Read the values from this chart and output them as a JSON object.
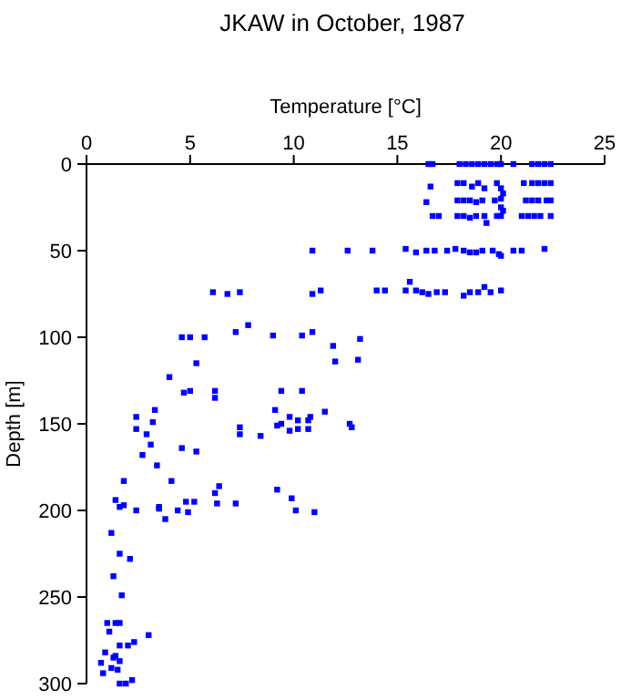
{
  "chart_data": {
    "type": "scatter",
    "title": "JKAW in October, 1987",
    "xlabel": "Temperature [°C]",
    "ylabel": "Depth [m]",
    "xlim": [
      0,
      25
    ],
    "xticks": [
      0,
      5,
      10,
      15,
      20,
      25
    ],
    "ylim": [
      300,
      0
    ],
    "yticks": [
      0,
      50,
      100,
      150,
      200,
      250,
      300
    ],
    "marker": "square",
    "series": [
      {
        "color": "#0000ff",
        "x": [
          16.5,
          16.7,
          18.0,
          18.3,
          18.6,
          18.9,
          19.2,
          19.5,
          19.8,
          20.0,
          20.6,
          21.5,
          21.8,
          22.1,
          22.4,
          16.6,
          17.9,
          18.2,
          18.6,
          18.9,
          19.2,
          19.8,
          20.0,
          20.1,
          21.1,
          21.5,
          21.8,
          22.1,
          22.4,
          16.4,
          17.9,
          18.2,
          18.5,
          18.8,
          19.1,
          19.7,
          20.0,
          20.0,
          20.1,
          21.2,
          21.5,
          21.8,
          22.2,
          22.4,
          16.7,
          17.0,
          17.9,
          18.2,
          18.5,
          18.8,
          19.2,
          19.3,
          19.8,
          20.0,
          21.0,
          21.3,
          21.6,
          21.9,
          22.4,
          10.9,
          12.6,
          13.8,
          15.4,
          15.9,
          16.4,
          16.8,
          17.4,
          17.8,
          18.2,
          18.5,
          18.8,
          19.1,
          19.6,
          19.9,
          20.0,
          20.6,
          21.0,
          22.1,
          6.1,
          6.8,
          7.4,
          10.9,
          11.3,
          14.0,
          14.4,
          15.4,
          15.6,
          15.9,
          16.2,
          16.5,
          16.9,
          17.3,
          18.2,
          18.5,
          18.9,
          19.2,
          19.5,
          20.0,
          7.8,
          7.2,
          4.6,
          5.0,
          5.7,
          9.0,
          10.4,
          10.9,
          11.9,
          13.2,
          12.0,
          13.1,
          5.3,
          4.0,
          4.7,
          5.0,
          6.2,
          6.2,
          9.4,
          10.4,
          2.4,
          2.4,
          3.2,
          3.3,
          2.9,
          3.1,
          2.7,
          3.4,
          4.6,
          5.3,
          7.4,
          7.4,
          8.4,
          9.1,
          9.2,
          9.4,
          9.8,
          9.8,
          10.2,
          10.2,
          10.7,
          10.7,
          10.8,
          11.5,
          12.7,
          12.8,
          1.8,
          1.4,
          1.8,
          1.6,
          2.4,
          3.5,
          3.5,
          3.8,
          4.1,
          4.4,
          4.8,
          4.9,
          5.2,
          6.4,
          6.2,
          6.3,
          7.2,
          9.2,
          9.9,
          10.1,
          11.0,
          1.2,
          1.6,
          2.1,
          1.3,
          1.7,
          1.0,
          1.4,
          1.6,
          1.1,
          3.0,
          2.3,
          2.0,
          1.6,
          0.9,
          1.4,
          1.3,
          1.6,
          0.7,
          1.2,
          1.5,
          0.8,
          1.6,
          1.9,
          2.2
        ],
        "values": [
          0,
          0,
          0,
          0,
          0,
          0,
          0,
          0,
          0,
          0,
          0,
          0,
          0,
          0,
          0,
          13,
          11,
          11,
          13,
          11,
          14,
          11,
          14,
          17,
          11,
          11,
          11,
          11,
          11,
          22,
          21,
          21,
          21,
          22,
          21,
          21,
          20,
          25,
          27,
          21,
          21,
          21,
          21,
          21,
          30,
          30,
          30,
          30,
          31,
          30,
          30,
          34,
          30,
          30,
          30,
          30,
          30,
          30,
          30,
          50,
          50,
          50,
          49,
          51,
          50,
          50,
          50,
          49,
          50,
          51,
          51,
          50,
          50,
          52,
          53,
          50,
          50,
          49,
          74,
          75,
          74,
          75,
          73,
          73,
          73,
          73,
          68,
          73,
          74,
          75,
          74,
          74,
          76,
          74,
          74,
          71,
          74,
          73,
          93,
          97,
          100,
          100,
          100,
          99,
          99,
          97,
          105,
          101,
          114,
          113,
          115,
          123,
          132,
          131,
          131,
          135,
          131,
          131,
          146,
          153,
          149,
          142,
          156,
          162,
          168,
          174,
          164,
          166,
          152,
          156,
          157,
          142,
          151,
          150,
          154,
          146,
          148,
          153,
          153,
          148,
          146,
          143,
          150,
          152,
          183,
          194,
          197,
          198,
          200,
          198,
          199,
          205,
          183,
          200,
          195,
          201,
          195,
          186,
          190,
          196,
          196,
          188,
          193,
          200,
          201,
          213,
          225,
          228,
          238,
          249,
          265,
          265,
          265,
          270,
          272,
          276,
          278,
          278,
          282,
          284,
          285,
          287,
          288,
          291,
          292,
          294,
          300,
          300,
          298
        ]
      }
    ]
  }
}
